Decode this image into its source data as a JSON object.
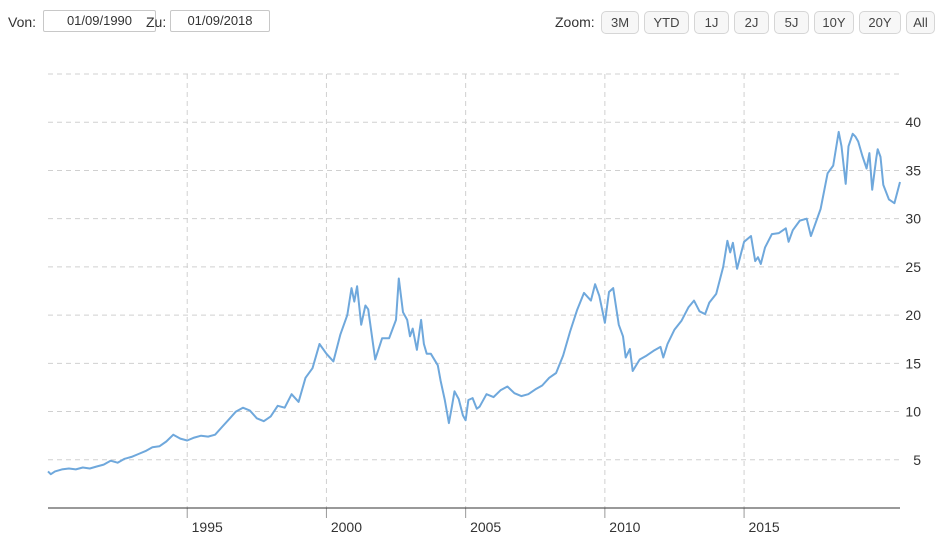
{
  "toolbar": {
    "from_label": "Von:",
    "from_value": "01/09/1990",
    "to_label": "Zu:",
    "to_value": "01/09/2018",
    "zoom_label": "Zoom:",
    "zoom_buttons": [
      "3M",
      "YTD",
      "1J",
      "2J",
      "5J",
      "10Y",
      "20Y",
      "All"
    ]
  },
  "colors": {
    "series": "#6fa8dc",
    "grid": "#d0d0d0",
    "axis": "#333333"
  },
  "chart_data": {
    "type": "line",
    "title": "",
    "xlabel": "",
    "ylabel": "",
    "xlim": [
      1990.0,
      2018.0
    ],
    "ylim": [
      0,
      45
    ],
    "y_ticks": [
      5,
      10,
      15,
      20,
      25,
      30,
      35,
      40
    ],
    "x_ticks": [
      1995,
      2000,
      2005,
      2010,
      2015
    ],
    "grid": true,
    "legend": "none",
    "series": [
      {
        "points": [
          [
            1990.0,
            3.8
          ],
          [
            1990.1,
            3.5
          ],
          [
            1990.25,
            3.8
          ],
          [
            1990.5,
            4.0
          ],
          [
            1990.75,
            4.1
          ],
          [
            1991.0,
            4.0
          ],
          [
            1991.25,
            4.2
          ],
          [
            1991.5,
            4.1
          ],
          [
            1991.75,
            4.3
          ],
          [
            1992.0,
            4.5
          ],
          [
            1992.25,
            4.9
          ],
          [
            1992.5,
            4.7
          ],
          [
            1992.75,
            5.1
          ],
          [
            1993.0,
            5.3
          ],
          [
            1993.25,
            5.6
          ],
          [
            1993.5,
            5.9
          ],
          [
            1993.75,
            6.3
          ],
          [
            1994.0,
            6.4
          ],
          [
            1994.25,
            6.9
          ],
          [
            1994.5,
            7.6
          ],
          [
            1994.75,
            7.2
          ],
          [
            1995.0,
            7.0
          ],
          [
            1995.25,
            7.3
          ],
          [
            1995.5,
            7.5
          ],
          [
            1995.75,
            7.4
          ],
          [
            1996.0,
            7.6
          ],
          [
            1996.25,
            8.4
          ],
          [
            1996.5,
            9.2
          ],
          [
            1996.75,
            10.0
          ],
          [
            1997.0,
            10.4
          ],
          [
            1997.25,
            10.1
          ],
          [
            1997.5,
            9.3
          ],
          [
            1997.75,
            9.0
          ],
          [
            1998.0,
            9.5
          ],
          [
            1998.25,
            10.6
          ],
          [
            1998.5,
            10.4
          ],
          [
            1998.75,
            11.8
          ],
          [
            1999.0,
            11.0
          ],
          [
            1999.25,
            13.5
          ],
          [
            1999.5,
            14.5
          ],
          [
            1999.75,
            17.0
          ],
          [
            2000.0,
            16.0
          ],
          [
            2000.25,
            15.2
          ],
          [
            2000.5,
            18.0
          ],
          [
            2000.75,
            20.0
          ],
          [
            2000.9,
            22.8
          ],
          [
            2001.0,
            21.4
          ],
          [
            2001.1,
            23.0
          ],
          [
            2001.25,
            19.0
          ],
          [
            2001.4,
            21.0
          ],
          [
            2001.5,
            20.6
          ],
          [
            2001.75,
            15.4
          ],
          [
            2002.0,
            17.6
          ],
          [
            2002.25,
            17.6
          ],
          [
            2002.5,
            19.5
          ],
          [
            2002.6,
            23.8
          ],
          [
            2002.75,
            20.3
          ],
          [
            2002.9,
            19.5
          ],
          [
            2003.0,
            17.8
          ],
          [
            2003.1,
            18.6
          ],
          [
            2003.25,
            16.4
          ],
          [
            2003.4,
            19.5
          ],
          [
            2003.5,
            17.0
          ],
          [
            2003.6,
            16.0
          ],
          [
            2003.75,
            16.0
          ],
          [
            2004.0,
            14.8
          ],
          [
            2004.1,
            13.2
          ],
          [
            2004.25,
            11.2
          ],
          [
            2004.4,
            8.8
          ],
          [
            2004.5,
            10.4
          ],
          [
            2004.6,
            12.1
          ],
          [
            2004.75,
            11.3
          ],
          [
            2004.9,
            9.6
          ],
          [
            2005.0,
            9.1
          ],
          [
            2005.1,
            11.2
          ],
          [
            2005.25,
            11.4
          ],
          [
            2005.4,
            10.3
          ],
          [
            2005.5,
            10.5
          ],
          [
            2005.75,
            11.8
          ],
          [
            2006.0,
            11.5
          ],
          [
            2006.25,
            12.2
          ],
          [
            2006.5,
            12.6
          ],
          [
            2006.75,
            11.9
          ],
          [
            2007.0,
            11.6
          ],
          [
            2007.25,
            11.8
          ],
          [
            2007.5,
            12.3
          ],
          [
            2007.75,
            12.7
          ],
          [
            2008.0,
            13.5
          ],
          [
            2008.25,
            14.0
          ],
          [
            2008.5,
            15.8
          ],
          [
            2008.75,
            18.3
          ],
          [
            2009.0,
            20.5
          ],
          [
            2009.25,
            22.3
          ],
          [
            2009.5,
            21.5
          ],
          [
            2009.65,
            23.2
          ],
          [
            2009.8,
            22.0
          ],
          [
            2010.0,
            19.2
          ],
          [
            2010.15,
            22.4
          ],
          [
            2010.3,
            22.8
          ],
          [
            2010.5,
            19.0
          ],
          [
            2010.65,
            17.8
          ],
          [
            2010.75,
            15.6
          ],
          [
            2010.9,
            16.5
          ],
          [
            2011.0,
            14.2
          ],
          [
            2011.25,
            15.4
          ],
          [
            2011.5,
            15.8
          ],
          [
            2011.75,
            16.3
          ],
          [
            2012.0,
            16.7
          ],
          [
            2012.1,
            15.6
          ],
          [
            2012.25,
            17.0
          ],
          [
            2012.5,
            18.5
          ],
          [
            2012.75,
            19.4
          ],
          [
            2013.0,
            20.8
          ],
          [
            2013.2,
            21.5
          ],
          [
            2013.4,
            20.4
          ],
          [
            2013.6,
            20.1
          ],
          [
            2013.75,
            21.3
          ],
          [
            2014.0,
            22.2
          ],
          [
            2014.25,
            25.0
          ],
          [
            2014.4,
            27.7
          ],
          [
            2014.5,
            26.5
          ],
          [
            2014.6,
            27.5
          ],
          [
            2014.75,
            24.8
          ],
          [
            2014.9,
            26.5
          ],
          [
            2015.0,
            27.6
          ],
          [
            2015.25,
            28.2
          ],
          [
            2015.4,
            25.6
          ],
          [
            2015.5,
            26.0
          ],
          [
            2015.6,
            25.3
          ],
          [
            2015.75,
            27.0
          ],
          [
            2016.0,
            28.4
          ],
          [
            2016.25,
            28.5
          ],
          [
            2016.5,
            29.0
          ],
          [
            2016.6,
            27.6
          ],
          [
            2016.75,
            28.8
          ],
          [
            2017.0,
            29.8
          ],
          [
            2017.25,
            30.0
          ],
          [
            2017.4,
            28.2
          ],
          [
            2017.5,
            29.0
          ],
          [
            2017.75,
            31.0
          ],
          [
            2018.0,
            34.7
          ],
          [
            2018.2,
            35.5
          ],
          [
            2018.4,
            39.0
          ],
          [
            2018.5,
            37.5
          ],
          [
            2018.65,
            33.6
          ],
          [
            2018.75,
            37.5
          ],
          [
            2018.9,
            38.8
          ],
          [
            2019.0,
            38.5
          ],
          [
            2019.1,
            38.0
          ],
          [
            2019.25,
            36.5
          ],
          [
            2019.4,
            35.2
          ],
          [
            2019.5,
            36.8
          ],
          [
            2019.6,
            33.0
          ],
          [
            2019.75,
            36.3
          ],
          [
            2019.8,
            37.2
          ],
          [
            2019.9,
            36.4
          ],
          [
            2020.0,
            33.5
          ],
          [
            2020.2,
            32.0
          ],
          [
            2020.4,
            31.6
          ],
          [
            2020.6,
            33.8
          ]
        ]
      }
    ]
  }
}
